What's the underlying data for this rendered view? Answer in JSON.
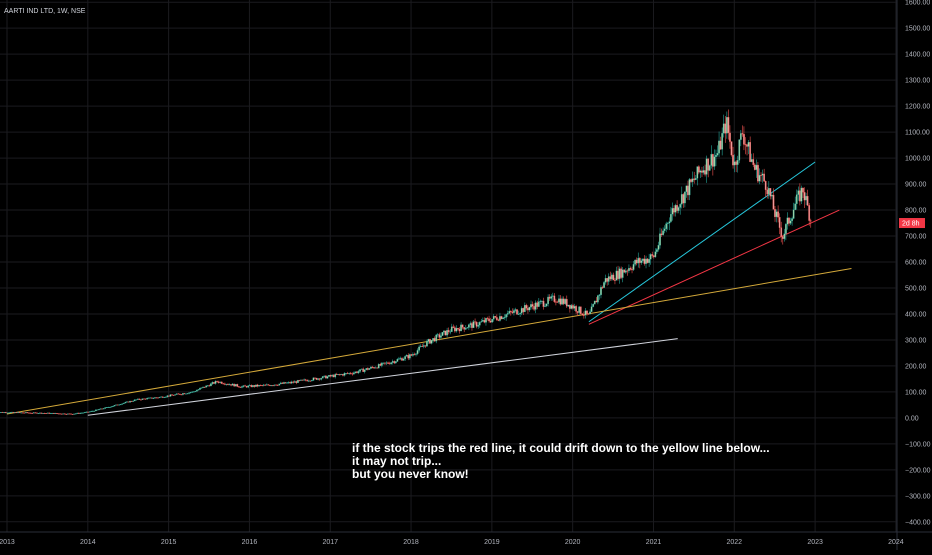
{
  "chart_title": "AARTI IND LTD, 1W, NSE",
  "price_badge": {
    "label": "2d 8h",
    "value": 750,
    "color": "#f23645"
  },
  "annotation": [
    "if the stock trips the red line, it could drift down to the yellow line below...",
    "it may not trip...",
    "but you never know!"
  ],
  "chart_data": {
    "type": "candlestick",
    "x_axis": {
      "ticks": [
        "2013",
        "2014",
        "2015",
        "2016",
        "2017",
        "2018",
        "2019",
        "2020",
        "2021",
        "2022",
        "2023",
        "2024"
      ],
      "range": [
        2013.0,
        2024.1
      ]
    },
    "y_axis": {
      "ticks": [
        -400,
        -300,
        -200,
        -100,
        0,
        100,
        200,
        300,
        400,
        500,
        600,
        700,
        800,
        900,
        1000,
        1100,
        1200,
        1300,
        1400,
        1500,
        1600
      ],
      "range": [
        -420,
        1620
      ],
      "position": "right"
    },
    "grid": true,
    "colors": {
      "up": "#26a69a",
      "down": "#ef5350",
      "candle_up_fill": "#a5d6a7",
      "candle_down_fill": "#ef9a9a"
    },
    "price_path": [
      [
        2012.85,
        22
      ],
      [
        2013.5,
        18
      ],
      [
        2013.8,
        15
      ],
      [
        2014.0,
        22
      ],
      [
        2014.3,
        45
      ],
      [
        2014.6,
        70
      ],
      [
        2014.9,
        80
      ],
      [
        2015.3,
        100
      ],
      [
        2015.6,
        140
      ],
      [
        2015.9,
        120
      ],
      [
        2016.2,
        125
      ],
      [
        2016.5,
        135
      ],
      [
        2016.8,
        150
      ],
      [
        2017.0,
        160
      ],
      [
        2017.3,
        175
      ],
      [
        2017.6,
        200
      ],
      [
        2017.9,
        230
      ],
      [
        2018.0,
        240
      ],
      [
        2018.2,
        290
      ],
      [
        2018.5,
        340
      ],
      [
        2018.8,
        360
      ],
      [
        2019.0,
        380
      ],
      [
        2019.2,
        400
      ],
      [
        2019.5,
        430
      ],
      [
        2019.8,
        460
      ],
      [
        2020.0,
        430
      ],
      [
        2020.2,
        390
      ],
      [
        2020.4,
        530
      ],
      [
        2020.6,
        560
      ],
      [
        2020.8,
        600
      ],
      [
        2021.0,
        620
      ],
      [
        2021.2,
        780
      ],
      [
        2021.4,
        870
      ],
      [
        2021.6,
        960
      ],
      [
        2021.8,
        1020
      ],
      [
        2021.9,
        1140
      ],
      [
        2022.0,
        970
      ],
      [
        2022.1,
        1100
      ],
      [
        2022.25,
        960
      ],
      [
        2022.4,
        900
      ],
      [
        2022.5,
        790
      ],
      [
        2022.6,
        700
      ],
      [
        2022.75,
        820
      ],
      [
        2022.85,
        880
      ],
      [
        2022.95,
        760
      ]
    ],
    "trendlines": [
      {
        "name": "cyan",
        "color": "#26c6da",
        "points": [
          [
            2020.2,
            370
          ],
          [
            2023.0,
            985
          ]
        ]
      },
      {
        "name": "red",
        "color": "#f23645",
        "points": [
          [
            2020.2,
            360
          ],
          [
            2023.3,
            800
          ]
        ]
      },
      {
        "name": "yellow",
        "color": "#d4a93a",
        "points": [
          [
            2013.0,
            15
          ],
          [
            2023.45,
            575
          ]
        ]
      },
      {
        "name": "white",
        "color": "#d1d4dc",
        "points": [
          [
            2014.0,
            10
          ],
          [
            2021.3,
            305
          ]
        ]
      }
    ]
  }
}
